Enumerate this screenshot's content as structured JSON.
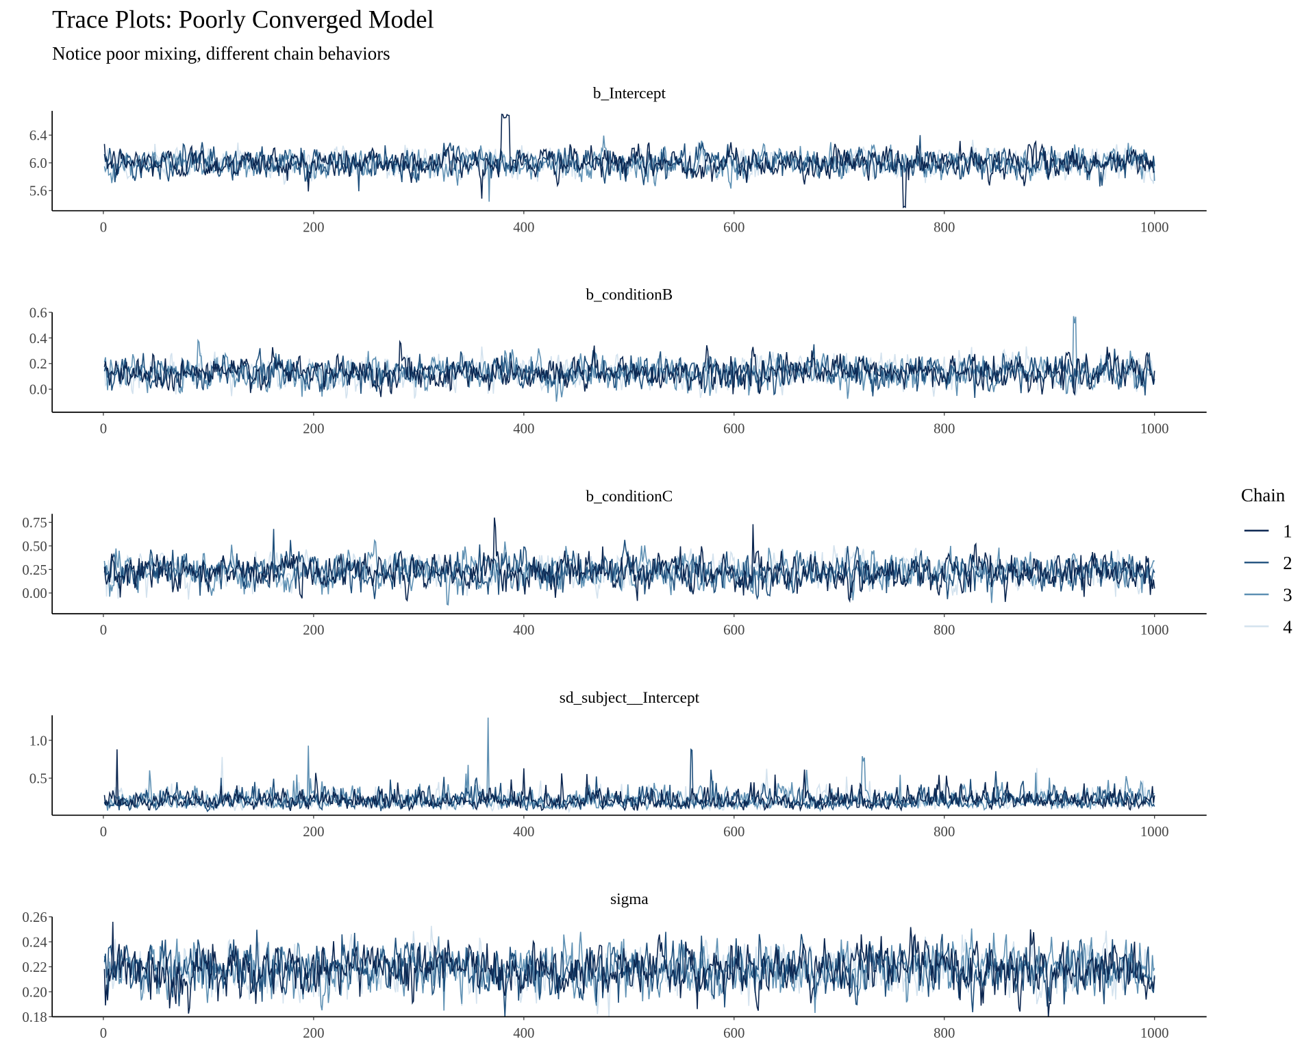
{
  "chart_data": {
    "type": "line",
    "title": "Trace Plots: Poorly Converged Model",
    "subtitle": "Notice poor mixing, different chain behaviors",
    "xlabel": "",
    "ylabel": "",
    "xlim": [
      0,
      1000
    ],
    "x_ticks": [
      0,
      200,
      400,
      600,
      800,
      1000
    ],
    "grid": false,
    "iterations": 1000,
    "legend": {
      "title": "Chain",
      "placement": "right",
      "entries": [
        {
          "label": "1",
          "color": "#0b2650"
        },
        {
          "label": "2",
          "color": "#1e4f7c"
        },
        {
          "label": "3",
          "color": "#5e90b3"
        },
        {
          "label": "4",
          "color": "#d3e2ee"
        }
      ]
    },
    "panels": [
      {
        "name": "b_Intercept",
        "ylim": [
          5.31,
          6.75
        ],
        "y_ticks": [
          5.6,
          6.0,
          6.4
        ],
        "tick_labels": [
          "5.6",
          "6.0",
          "6.4"
        ],
        "mean": 6.0,
        "sd": 0.11,
        "kind": "normal",
        "spikes": [
          {
            "chain": 1,
            "iter": 378,
            "width": 8,
            "value": 6.7
          },
          {
            "chain": 1,
            "iter": 760,
            "width": 3,
            "value": 5.36
          },
          {
            "chain": 3,
            "iter": 366,
            "width": 1,
            "value": 5.44
          }
        ]
      },
      {
        "name": "b_conditionB",
        "ylim": [
          -0.18,
          0.6
        ],
        "y_ticks": [
          0.0,
          0.2,
          0.4,
          0.6
        ],
        "tick_labels": [
          "0.0",
          "0.2",
          "0.4",
          "0.6"
        ],
        "mean": 0.13,
        "sd": 0.065,
        "kind": "normal",
        "spikes": [
          {
            "chain": 3,
            "iter": 922,
            "width": 3,
            "value": 0.57
          },
          {
            "chain": 1,
            "iter": 281,
            "width": 2,
            "value": 0.37
          },
          {
            "chain": 3,
            "iter": 89,
            "width": 2,
            "value": 0.38
          }
        ]
      },
      {
        "name": "b_conditionC",
        "ylim": [
          -0.22,
          0.84
        ],
        "y_ticks": [
          0.0,
          0.25,
          0.5,
          0.75
        ],
        "tick_labels": [
          "0.00",
          "0.25",
          "0.50",
          "0.75"
        ],
        "mean": 0.23,
        "sd": 0.1,
        "kind": "normal",
        "spikes": [
          {
            "chain": 1,
            "iter": 371,
            "width": 2,
            "value": 0.8
          },
          {
            "chain": 1,
            "iter": 617,
            "width": 1,
            "value": 0.73
          },
          {
            "chain": 2,
            "iter": 161,
            "width": 1,
            "value": 0.68
          }
        ]
      },
      {
        "name": "sd_subject__Intercept",
        "ylim": [
          0.01,
          1.33
        ],
        "y_ticks": [
          0.5,
          1.0
        ],
        "tick_labels": [
          "0.5",
          "1.0"
        ],
        "mean": 0.2,
        "sd": 0.35,
        "kind": "lognormal",
        "spikes": [
          {
            "chain": 3,
            "iter": 365,
            "width": 1,
            "value": 1.3
          },
          {
            "chain": 1,
            "iter": 12,
            "width": 1,
            "value": 0.88
          },
          {
            "chain": 2,
            "iter": 558,
            "width": 2,
            "value": 0.88
          },
          {
            "chain": 3,
            "iter": 194,
            "width": 1,
            "value": 0.93
          },
          {
            "chain": 3,
            "iter": 721,
            "width": 3,
            "value": 0.79
          }
        ]
      },
      {
        "name": "sigma",
        "ylim": [
          0.18,
          0.26
        ],
        "y_ticks": [
          0.18,
          0.2,
          0.22,
          0.24,
          0.26
        ],
        "tick_labels": [
          "0.18",
          "0.20",
          "0.22",
          "0.24",
          "0.26"
        ],
        "mean": 0.217,
        "sd": 0.011,
        "kind": "normal",
        "spikes": [
          {
            "chain": 1,
            "iter": 8,
            "width": 1,
            "value": 0.256
          }
        ]
      }
    ]
  }
}
